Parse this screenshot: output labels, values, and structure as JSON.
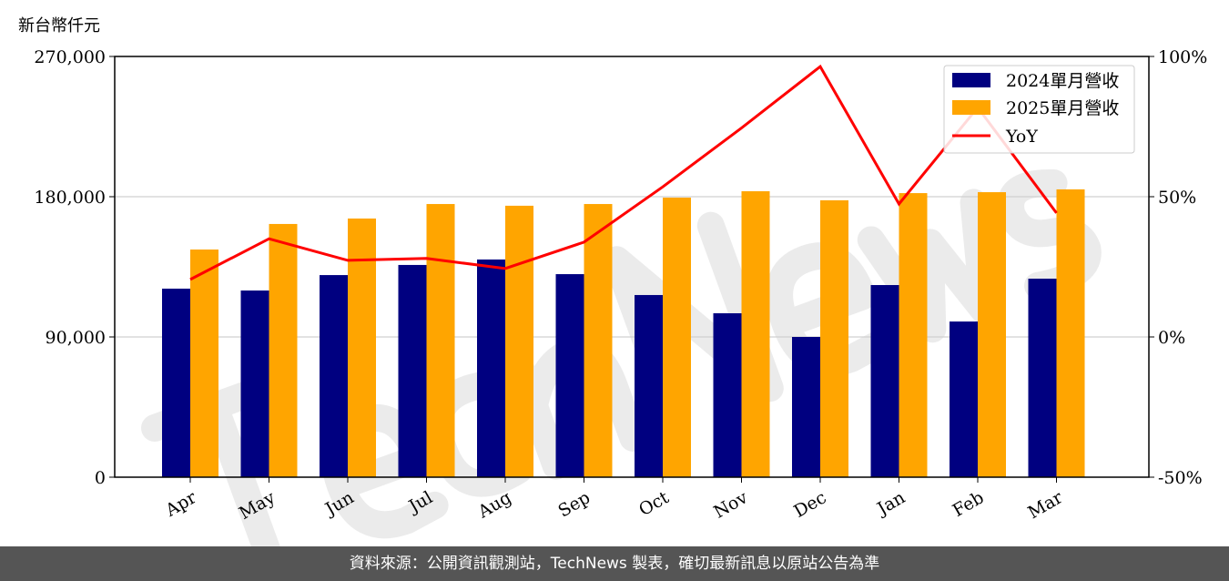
{
  "chart_data": {
    "type": "bar+line",
    "ylabel": "新台幣仟元",
    "categories": [
      "Apr",
      "May",
      "Jun",
      "Jul",
      "Aug",
      "Sep",
      "Oct",
      "Nov",
      "Dec",
      "Jan",
      "Feb",
      "Mar"
    ],
    "ylim": [
      0,
      270000
    ],
    "yticks": [
      "0",
      "90,000",
      "180,000",
      "270,000"
    ],
    "ytick_values": [
      0,
      90000,
      180000,
      270000
    ],
    "y2lim": [
      -50,
      100
    ],
    "y2ticks": [
      "-50%",
      "0%",
      "50%",
      "100%"
    ],
    "y2tick_values": [
      -50,
      0,
      50,
      100
    ],
    "grid": "horizontal",
    "legend_placement": "top-right",
    "series": [
      {
        "name": "2024單月營收",
        "type": "bar",
        "color": "#000080",
        "values": [
          121000,
          119800,
          129700,
          136200,
          139700,
          130300,
          116900,
          105200,
          90000,
          123300,
          99900,
          127400
        ]
      },
      {
        "name": "2025單月營收",
        "type": "bar",
        "color": "#FFA500",
        "values": [
          146100,
          162500,
          166000,
          175300,
          174200,
          175300,
          179400,
          183500,
          177700,
          182300,
          182900,
          184700
        ]
      },
      {
        "name": "YoY",
        "type": "line",
        "axis": "right",
        "color": "#FF0000",
        "values": [
          20.5,
          35.0,
          27.3,
          28.0,
          24.4,
          33.8,
          53.5,
          74.5,
          96.4,
          47.4,
          81.8,
          44.2
        ]
      }
    ]
  },
  "watermark": "TechNews",
  "footer": "資料來源：公開資訊觀測站，TechNews 製表，確切最新訊息以原站公告為準"
}
